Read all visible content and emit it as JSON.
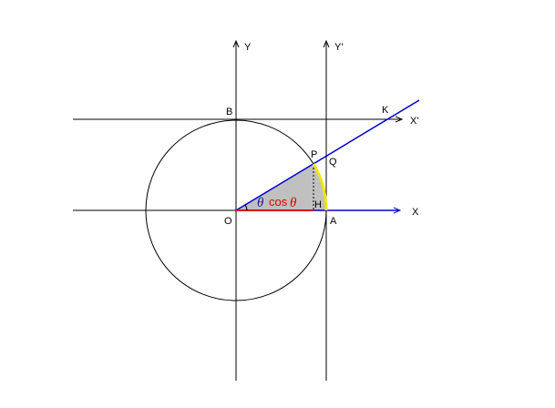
{
  "labels": {
    "y_axis": "Y",
    "y_prime": "Y'",
    "x_axis": "X",
    "x_prime": "X'",
    "b": "B",
    "k": "K",
    "p": "P",
    "q": "Q",
    "o": "O",
    "h": "H",
    "a": "A",
    "theta_angle": "θ",
    "cos_text": "cos",
    "theta_in_cos": "θ"
  },
  "colors": {
    "axes": "#000000",
    "circle": "#000000",
    "blue_line": "#0000cc",
    "red_segment": "#e00000",
    "yellow_arc": "#f2e600",
    "shaded_sector": "#c0c0c0"
  }
}
